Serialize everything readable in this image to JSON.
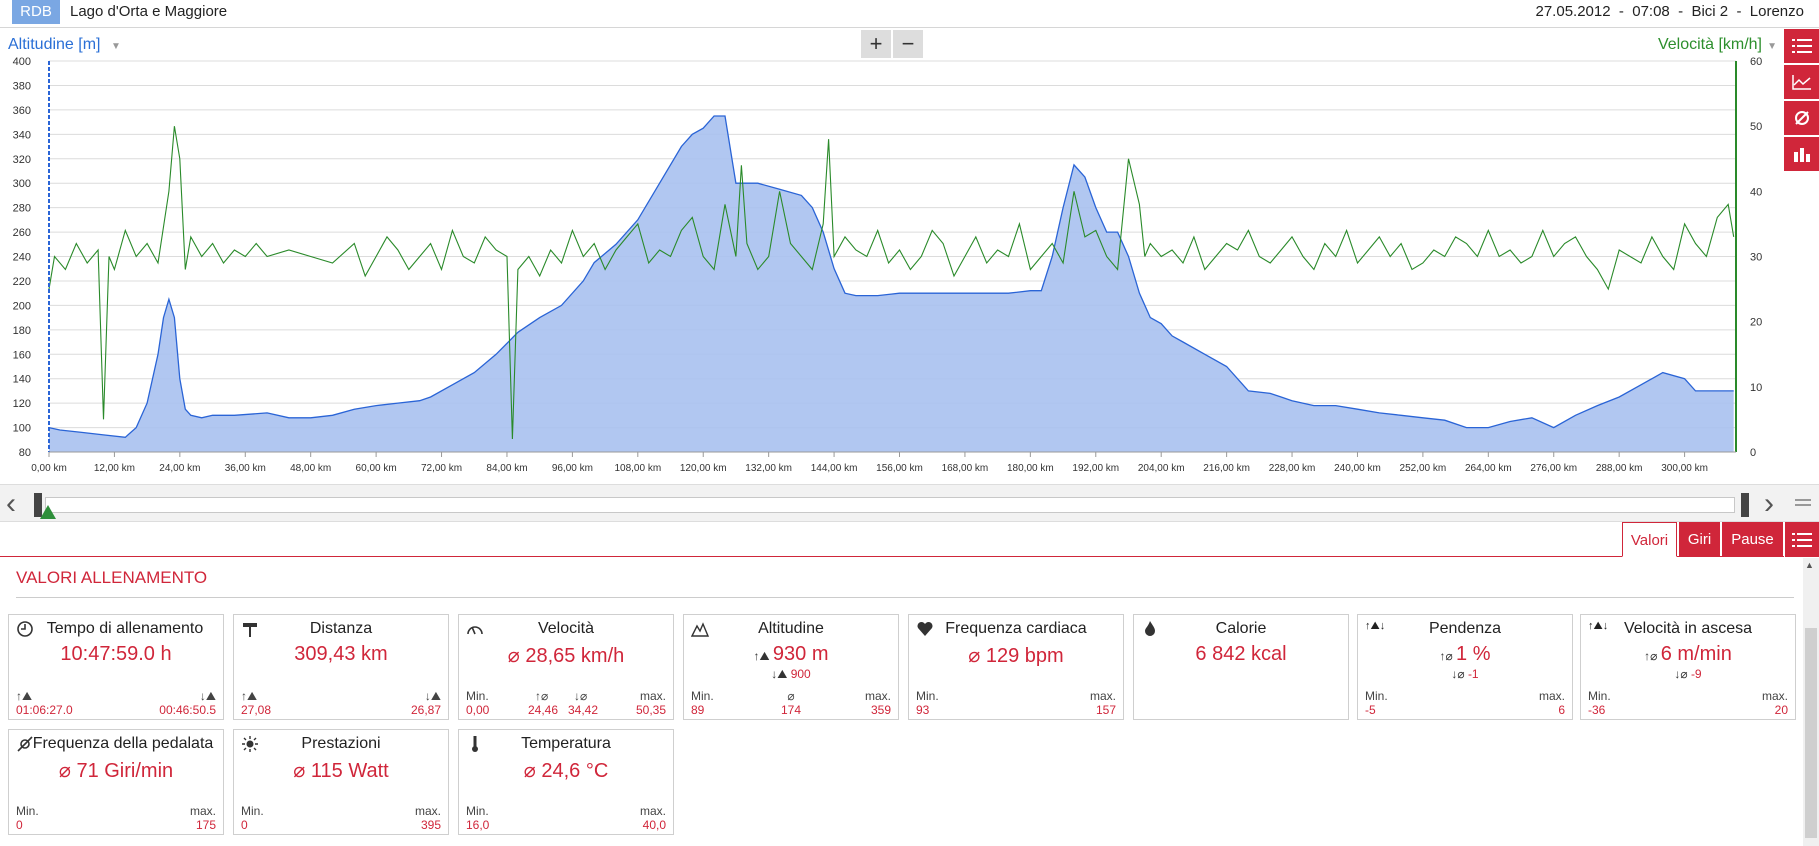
{
  "header": {
    "logo": "RDB",
    "place": "Lago d'Orta e Maggiore",
    "session": "27.05.2012  -  07:08  -  Bici 2  -  Lorenzo"
  },
  "chart_toolbar": {
    "left_axis_select": "Altitudine [m]",
    "right_axis_select": "Velocità [km/h]",
    "zoom_in": "+",
    "zoom_out": "−"
  },
  "colors": {
    "accent_red": "#d0263a",
    "altitude_fill": "#a9c1f0",
    "altitude_line": "#2a64d6",
    "speed_line": "#2a8a2a"
  },
  "chart_data": {
    "type": "area",
    "xlabel": "",
    "x_ticks": [
      "0,00 km",
      "12,00 km",
      "24,00 km",
      "36,00 km",
      "48,00 km",
      "60,00 km",
      "72,00 km",
      "84,00 km",
      "96,00 km",
      "108,00 km",
      "120,00 km",
      "132,00 km",
      "144,00 km",
      "156,00 km",
      "168,00 km",
      "180,00 km",
      "192,00 km",
      "204,00 km",
      "216,00 km",
      "228,00 km",
      "240,00 km",
      "252,00 km",
      "264,00 km",
      "276,00 km",
      "288,00 km",
      "300,00 km"
    ],
    "x_range": [
      0,
      309.43
    ],
    "y_left": {
      "label": "Altitudine [m]",
      "range": [
        80,
        400
      ],
      "ticks": [
        80,
        100,
        120,
        140,
        160,
        180,
        200,
        220,
        240,
        260,
        280,
        300,
        320,
        340,
        360,
        380,
        400
      ]
    },
    "y_right": {
      "label": "Velocità [km/h]",
      "range": [
        0,
        60
      ],
      "ticks": [
        0,
        10,
        20,
        30,
        40,
        50,
        60
      ]
    },
    "grid": true,
    "series": [
      {
        "name": "Altitudine [m]",
        "axis": "left",
        "type": "area",
        "x": [
          0,
          2,
          6,
          10,
          14,
          16,
          18,
          20,
          21,
          22,
          23,
          24,
          25,
          26,
          28,
          30,
          34,
          40,
          44,
          48,
          52,
          56,
          60,
          64,
          68,
          70,
          74,
          78,
          82,
          86,
          90,
          94,
          98,
          100,
          104,
          108,
          112,
          116,
          118,
          120,
          122,
          124,
          126,
          127,
          128,
          130,
          134,
          138,
          140,
          142,
          144,
          146,
          148,
          150,
          152,
          156,
          160,
          164,
          168,
          172,
          176,
          180,
          182,
          184,
          186,
          188,
          190,
          192,
          194,
          196,
          198,
          200,
          202,
          204,
          206,
          208,
          212,
          216,
          220,
          224,
          226,
          228,
          232,
          236,
          240,
          244,
          248,
          252,
          256,
          260,
          264,
          268,
          272,
          276,
          280,
          284,
          288,
          292,
          296,
          300,
          302,
          306,
          309
        ],
        "y": [
          100,
          98,
          96,
          94,
          92,
          100,
          120,
          160,
          190,
          205,
          190,
          140,
          115,
          110,
          108,
          110,
          110,
          112,
          108,
          108,
          110,
          115,
          118,
          120,
          122,
          125,
          135,
          145,
          160,
          178,
          190,
          200,
          220,
          235,
          250,
          270,
          300,
          330,
          340,
          345,
          355,
          355,
          300,
          300,
          300,
          300,
          295,
          290,
          280,
          260,
          230,
          210,
          208,
          208,
          208,
          210,
          210,
          210,
          210,
          210,
          210,
          212,
          212,
          240,
          280,
          315,
          305,
          280,
          260,
          260,
          240,
          210,
          190,
          185,
          175,
          170,
          160,
          150,
          130,
          128,
          125,
          122,
          118,
          118,
          115,
          112,
          110,
          108,
          106,
          100,
          100,
          105,
          108,
          100,
          110,
          118,
          125,
          135,
          145,
          140,
          130,
          130,
          130
        ]
      },
      {
        "name": "Velocità [km/h]",
        "axis": "right",
        "type": "line",
        "x": [
          0,
          1,
          3,
          5,
          7,
          9,
          10,
          11,
          12,
          14,
          16,
          18,
          20,
          22,
          23,
          24,
          25,
          26,
          28,
          30,
          32,
          34,
          36,
          38,
          40,
          44,
          48,
          52,
          56,
          58,
          60,
          62,
          64,
          66,
          68,
          70,
          72,
          74,
          76,
          78,
          80,
          82,
          84,
          85,
          86,
          88,
          90,
          92,
          94,
          96,
          98,
          100,
          102,
          104,
          106,
          108,
          110,
          112,
          114,
          116,
          118,
          120,
          122,
          124,
          126,
          127,
          128,
          130,
          132,
          134,
          136,
          138,
          140,
          142,
          143,
          144,
          146,
          148,
          150,
          152,
          154,
          156,
          158,
          160,
          162,
          164,
          166,
          168,
          170,
          172,
          174,
          176,
          178,
          180,
          182,
          184,
          186,
          188,
          190,
          192,
          194,
          196,
          198,
          200,
          201,
          202,
          204,
          206,
          208,
          210,
          212,
          214,
          216,
          218,
          220,
          222,
          224,
          226,
          228,
          230,
          232,
          234,
          236,
          238,
          240,
          242,
          244,
          246,
          248,
          250,
          252,
          254,
          256,
          258,
          260,
          262,
          264,
          266,
          268,
          270,
          272,
          274,
          276,
          278,
          280,
          282,
          284,
          286,
          288,
          290,
          292,
          294,
          296,
          298,
          300,
          302,
          304,
          306,
          308,
          309
        ],
        "y": [
          25,
          30,
          28,
          32,
          29,
          31,
          5,
          30,
          28,
          34,
          30,
          32,
          29,
          40,
          50,
          45,
          28,
          33,
          30,
          32,
          29,
          31,
          30,
          32,
          30,
          31,
          30,
          29,
          32,
          27,
          30,
          33,
          31,
          28,
          30,
          32,
          28,
          34,
          30,
          29,
          33,
          31,
          30,
          2,
          28,
          30,
          27,
          31,
          29,
          34,
          30,
          32,
          28,
          31,
          33,
          35,
          29,
          31,
          30,
          34,
          36,
          30,
          28,
          38,
          30,
          44,
          32,
          28,
          30,
          40,
          32,
          30,
          28,
          35,
          48,
          30,
          33,
          31,
          30,
          34,
          29,
          31,
          28,
          30,
          34,
          32,
          27,
          30,
          33,
          29,
          31,
          30,
          35,
          28,
          30,
          32,
          29,
          40,
          33,
          34,
          30,
          28,
          45,
          38,
          30,
          32,
          30,
          31,
          29,
          33,
          28,
          30,
          32,
          31,
          34,
          30,
          29,
          31,
          33,
          30,
          28,
          32,
          30,
          34,
          29,
          31,
          33,
          30,
          32,
          28,
          29,
          31,
          30,
          33,
          32,
          30,
          34,
          30,
          31,
          29,
          30,
          34,
          30,
          32,
          33,
          30,
          28,
          25,
          31,
          30,
          29,
          33,
          30,
          28,
          35,
          32,
          30,
          36,
          38,
          33
        ]
      }
    ]
  },
  "slider": {},
  "tabs": [
    "Valori",
    "Giri",
    "Pause"
  ],
  "section_title": "VALORI ALLENAMENTO",
  "cards": {
    "tempo": {
      "title": "Tempo di allenamento",
      "value": "10:47:59.0 h",
      "left": "01:06:27.0",
      "right": "00:46:50.5"
    },
    "distanza": {
      "title": "Distanza",
      "value": "309,43 km",
      "left": "27,08",
      "right": "26,87"
    },
    "velocita": {
      "title": "Velocità",
      "value": "⌀ 28,65 km/h",
      "min_label": "Min.",
      "min": "0,00",
      "up": "24,46",
      "down": "34,42",
      "max_label": "max.",
      "max": "50,35"
    },
    "altitudine": {
      "title": "Altitudine",
      "value": "930 m",
      "sub": "900",
      "min_label": "Min.",
      "min": "89",
      "avg_label": "⌀",
      "avg": "174",
      "max_label": "max.",
      "max": "359"
    },
    "frequenza": {
      "title": "Frequenza cardiaca",
      "value": "⌀ 129 bpm",
      "min_label": "Min.",
      "min": "93",
      "max_label": "max.",
      "max": "157"
    },
    "calorie": {
      "title": "Calorie",
      "value": "6 842 kcal"
    },
    "pendenza": {
      "title": "Pendenza",
      "value": "1 %",
      "sub": "-1",
      "min_label": "Min.",
      "min": "-5",
      "max_label": "max.",
      "max": "6"
    },
    "ascesa": {
      "title": "Velocità in ascesa",
      "value": "6 m/min",
      "sub": "-9",
      "min_label": "Min.",
      "min": "-36",
      "max_label": "max.",
      "max": "20"
    },
    "pedalata": {
      "title": "Frequenza della pedalata",
      "value": "⌀ 71 Giri/min",
      "min_label": "Min.",
      "min": "0",
      "max_label": "max.",
      "max": "175"
    },
    "prestazioni": {
      "title": "Prestazioni",
      "value": "⌀ 115 Watt",
      "min_label": "Min.",
      "min": "0",
      "max_label": "max.",
      "max": "395"
    },
    "temperatura": {
      "title": "Temperatura",
      "value": "⌀ 24,6 °C",
      "min_label": "Min.",
      "min": "16,0",
      "max_label": "max.",
      "max": "40,0"
    }
  }
}
